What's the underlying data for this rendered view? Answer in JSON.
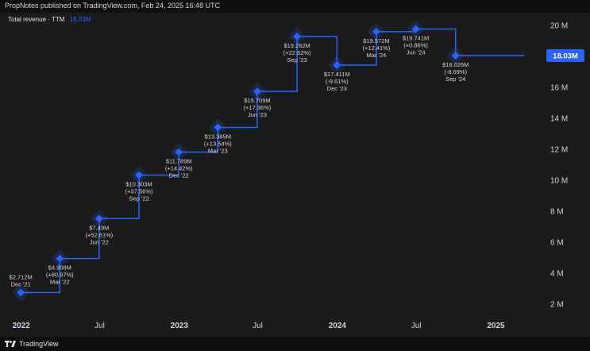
{
  "header": {
    "published_text": "PropNotes published on TradingView.com, Feb 24, 2025 16:48 UTC"
  },
  "legend": {
    "title": "Total revenue · TTM",
    "value": "18.03M"
  },
  "footer": {
    "brand": "TradingView"
  },
  "colors": {
    "line": "#2962ff",
    "badge_bg": "#2962ff",
    "panel_bg": "#1b1b1b",
    "page_bg": "#0f0f0f"
  },
  "chart_data": {
    "type": "line",
    "title": "Total revenue · TTM",
    "line_style": "step",
    "last_value_label": "18.03M",
    "ylim": [
      1.5,
      20.8
    ],
    "y_ticks": [
      {
        "value": 2,
        "label": "2 M"
      },
      {
        "value": 4,
        "label": "4 M"
      },
      {
        "value": 6,
        "label": "6 M"
      },
      {
        "value": 8,
        "label": "8 M"
      },
      {
        "value": 10,
        "label": "10 M"
      },
      {
        "value": 12,
        "label": "12 M"
      },
      {
        "value": 14,
        "label": "14 M"
      },
      {
        "value": 16,
        "label": "16 M"
      },
      {
        "value": 18,
        "label": "18 M"
      },
      {
        "value": 20,
        "label": "20 M"
      }
    ],
    "xlim": [
      "2021-11-13",
      "2025-04-22"
    ],
    "x_ticks": [
      {
        "date": "2022-01-01",
        "label": "2022",
        "major": true
      },
      {
        "date": "2022-07-01",
        "label": "Jul",
        "major": false
      },
      {
        "date": "2023-01-01",
        "label": "2023",
        "major": true
      },
      {
        "date": "2023-07-01",
        "label": "Jul",
        "major": false
      },
      {
        "date": "2024-01-01",
        "label": "2024",
        "major": true
      },
      {
        "date": "2024-07-01",
        "label": "Jul",
        "major": false
      },
      {
        "date": "2025-01-01",
        "label": "2025",
        "major": true
      }
    ],
    "line_end_date": "2025-03-08",
    "series": [
      {
        "points": [
          {
            "date": "2021-12-31",
            "value": 2.712,
            "label_value": "$2.712M",
            "label_change": "",
            "label_period": "Dec '21",
            "label_side": "above"
          },
          {
            "date": "2022-03-31",
            "value": 4.908,
            "label_value": "$4.908M",
            "label_change": "(+80.97%)",
            "label_period": "Mar '22",
            "label_side": "below"
          },
          {
            "date": "2022-06-30",
            "value": 7.49,
            "label_value": "$7.49M",
            "label_change": "(+52.61%)",
            "label_period": "Jun '22",
            "label_side": "below"
          },
          {
            "date": "2022-09-30",
            "value": 10.303,
            "label_value": "$10.303M",
            "label_change": "(+37.56%)",
            "label_period": "Sep '22",
            "label_side": "below"
          },
          {
            "date": "2022-12-31",
            "value": 11.789,
            "label_value": "$11.789M",
            "label_change": "(+14.42%)",
            "label_period": "Dec '22",
            "label_side": "below"
          },
          {
            "date": "2023-03-31",
            "value": 13.385,
            "label_value": "$13.385M",
            "label_change": "(+13.54%)",
            "label_period": "Mar '23",
            "label_side": "below"
          },
          {
            "date": "2023-06-30",
            "value": 15.709,
            "label_value": "$15.709M",
            "label_change": "(+17.36%)",
            "label_period": "Jun '23",
            "label_side": "below"
          },
          {
            "date": "2023-09-30",
            "value": 19.262,
            "label_value": "$19.262M",
            "label_change": "(+22.62%)",
            "label_period": "Sep '23",
            "label_side": "below"
          },
          {
            "date": "2023-12-31",
            "value": 17.411,
            "label_value": "$17.411M",
            "label_change": "(-9.61%)",
            "label_period": "Dec '23",
            "label_side": "below"
          },
          {
            "date": "2024-03-31",
            "value": 19.572,
            "label_value": "$19.572M",
            "label_change": "(+12.41%)",
            "label_period": "Mar '24",
            "label_side": "below"
          },
          {
            "date": "2024-06-30",
            "value": 19.741,
            "label_value": "$19.741M",
            "label_change": "(+0.86%)",
            "label_period": "Jun '24",
            "label_side": "below"
          },
          {
            "date": "2024-09-30",
            "value": 18.026,
            "label_value": "$18.026M",
            "label_change": "(-8.69%)",
            "label_period": "Sep '24",
            "label_side": "below"
          }
        ]
      }
    ],
    "grid": false,
    "legend_position": "top-left"
  }
}
